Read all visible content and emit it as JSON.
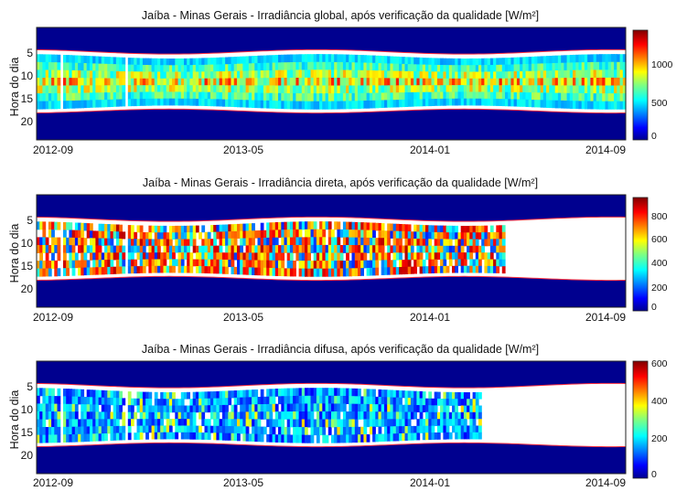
{
  "chart_data": [
    {
      "type": "heatmap",
      "title": "Jaíba - Minas Gerais - Irradiância global, após verificação da qualidade [W/m²]",
      "ylabel": "Hora do dia",
      "xticks": [
        "2012-09",
        "2013-05",
        "2014-01",
        "2014-09"
      ],
      "yticks": [
        5,
        10,
        15,
        20
      ],
      "ylim": [
        1,
        24
      ],
      "colorbar": {
        "ticks": [
          0,
          500,
          1000
        ],
        "range": [
          0,
          1250
        ]
      },
      "data_coverage": {
        "start_month": "2012-09",
        "end_month": "2014-09"
      }
    },
    {
      "type": "heatmap",
      "title": "Jaíba - Minas Gerais - Irradiância direta, após verificação da qualidade [W/m²]",
      "ylabel": "Hora do dia",
      "xticks": [
        "2012-09",
        "2013-05",
        "2014-01",
        "2014-09"
      ],
      "yticks": [
        5,
        10,
        15,
        20
      ],
      "ylim": [
        1,
        24
      ],
      "colorbar": {
        "ticks": [
          0,
          200,
          400,
          600,
          800
        ],
        "range": [
          0,
          900
        ]
      },
      "data_coverage": {
        "start_month": "2012-09",
        "end_month": "2014-04"
      }
    },
    {
      "type": "heatmap",
      "title": "Jaíba - Minas Gerais - Irradiância difusa, após verificação da qualidade [W/m²]",
      "ylabel": "Hora do dia",
      "xticks": [
        "2012-09",
        "2013-05",
        "2014-01",
        "2014-09"
      ],
      "yticks": [
        5,
        10,
        15,
        20
      ],
      "ylim": [
        1,
        24
      ],
      "colorbar": {
        "ticks": [
          0,
          200,
          400,
          600
        ],
        "range": [
          0,
          620
        ]
      },
      "data_coverage": {
        "start_month": "2012-09",
        "end_month": "2014-03"
      }
    }
  ],
  "colors": {
    "night_fill": "#00008f",
    "sun_boundary": "#ff3040",
    "background": "#ffffff"
  }
}
